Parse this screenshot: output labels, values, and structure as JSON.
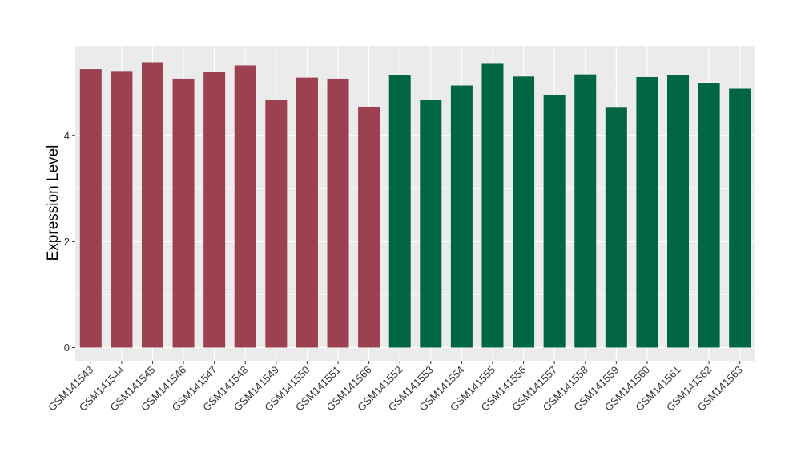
{
  "chart_data": {
    "type": "bar",
    "xlabel": "",
    "ylabel": "Expression Level",
    "ylim": [
      -0.25,
      5.7
    ],
    "yticks": [
      0,
      2,
      4
    ],
    "grid": true,
    "legend": "none",
    "colors": {
      "group1": "#9b4150",
      "group2": "#006644",
      "panel": "#ebebeb",
      "grid": "#ffffff"
    },
    "categories": [
      "GSM141543",
      "GSM141544",
      "GSM141545",
      "GSM141546",
      "GSM141547",
      "GSM141548",
      "GSM141549",
      "GSM141550",
      "GSM141551",
      "GSM141566",
      "GSM141552",
      "GSM141553",
      "GSM141554",
      "GSM141555",
      "GSM141556",
      "GSM141557",
      "GSM141558",
      "GSM141559",
      "GSM141560",
      "GSM141561",
      "GSM141562",
      "GSM141563"
    ],
    "values": [
      5.26,
      5.21,
      5.39,
      5.08,
      5.2,
      5.33,
      4.67,
      5.1,
      5.08,
      4.55,
      5.15,
      4.67,
      4.95,
      5.36,
      5.12,
      4.77,
      5.16,
      4.53,
      5.11,
      5.14,
      5.0,
      4.89
    ],
    "groups": [
      1,
      1,
      1,
      1,
      1,
      1,
      1,
      1,
      1,
      1,
      2,
      2,
      2,
      2,
      2,
      2,
      2,
      2,
      2,
      2,
      2,
      2
    ]
  }
}
